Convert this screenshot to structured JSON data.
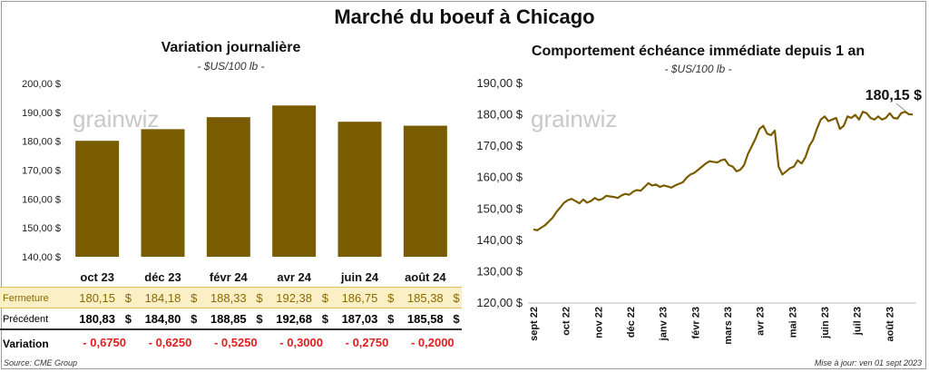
{
  "title": "Marché du boeuf à Chicago",
  "left_chart": {
    "title": "Variation journalière",
    "unit": "- $US/100 lb -",
    "watermark": "grainwiz"
  },
  "right_chart": {
    "title": "Comportement échéance immédiate depuis 1 an",
    "unit": "- $US/100 lb -",
    "watermark": "grainwiz",
    "last_value_label": "180,15 $"
  },
  "table": {
    "rows": [
      {
        "label": "Fermeture",
        "values": [
          "180,15",
          "184,18",
          "188,33",
          "192,38",
          "186,75",
          "185,38"
        ],
        "currency": "$"
      },
      {
        "label": "Précédent",
        "values": [
          "180,83",
          "184,80",
          "188,85",
          "192,68",
          "187,03",
          "185,58"
        ],
        "currency": "$"
      },
      {
        "label": "Variation",
        "values": [
          "- 0,6750",
          "- 0,6250",
          "- 0,5250",
          "- 0,3000",
          "- 0,2750",
          "- 0,2000"
        ],
        "currency": ""
      }
    ]
  },
  "footer": {
    "source": "Source: CME Group",
    "updated": "Mise à jour: ven 01 sept 2023"
  },
  "colors": {
    "bar": "#7a5c00",
    "line": "#7a5c00",
    "fermeture_bg": "#fbefc6",
    "negative": "#e02020"
  },
  "chart_data": [
    {
      "type": "bar",
      "title": "Variation journalière",
      "categories": [
        "oct 23",
        "déc 23",
        "févr 24",
        "avr 24",
        "juin 24",
        "août 24"
      ],
      "values": [
        180.15,
        184.18,
        188.33,
        192.38,
        186.75,
        185.38
      ],
      "ylim": [
        140,
        200
      ],
      "yticks": [
        "140,00 $",
        "150,00 $",
        "160,00 $",
        "170,00 $",
        "180,00 $",
        "190,00 $",
        "200,00 $"
      ],
      "grid": false
    },
    {
      "type": "line",
      "title": "Comportement échéance immédiate depuis 1 an",
      "ylim": [
        120,
        190
      ],
      "yticks": [
        "120,00 $",
        "130,00 $",
        "140,00 $",
        "150,00 $",
        "160,00 $",
        "170,00 $",
        "180,00 $",
        "190,00 $"
      ],
      "x_labels": [
        "sept 22",
        "oct 22",
        "nov 22",
        "déc 22",
        "janv 23",
        "févr 23",
        "mars 23",
        "avr 23",
        "mai 23",
        "juin 23",
        "juil 23",
        "août 23"
      ],
      "grid": false,
      "values": [
        143.5,
        143.2,
        144.0,
        144.8,
        146.0,
        147.2,
        149.0,
        150.5,
        152.0,
        152.8,
        153.2,
        152.5,
        151.8,
        153.0,
        152.0,
        152.5,
        153.5,
        152.8,
        153.2,
        154.2,
        154.0,
        153.8,
        153.5,
        154.3,
        154.8,
        154.5,
        155.5,
        156.0,
        155.8,
        157.0,
        158.2,
        157.5,
        157.8,
        157.0,
        157.5,
        157.2,
        156.8,
        157.5,
        158.0,
        158.5,
        160.0,
        161.0,
        161.5,
        162.5,
        163.5,
        164.5,
        165.2,
        165.0,
        164.8,
        165.5,
        165.8,
        164.0,
        163.5,
        162.0,
        162.5,
        164.0,
        167.5,
        170.0,
        172.5,
        175.5,
        176.5,
        174.0,
        173.5,
        175.0,
        163.5,
        161.0,
        162.0,
        163.0,
        163.5,
        165.5,
        164.5,
        166.5,
        170.0,
        172.0,
        175.5,
        178.5,
        179.5,
        178.0,
        178.5,
        179.0,
        175.5,
        176.5,
        179.5,
        179.0,
        180.0,
        178.5,
        181.0,
        180.5,
        179.0,
        178.5,
        179.5,
        178.5,
        179.0,
        180.5,
        179.0,
        178.8,
        180.5,
        181.0,
        180.2,
        180.15
      ]
    }
  ]
}
